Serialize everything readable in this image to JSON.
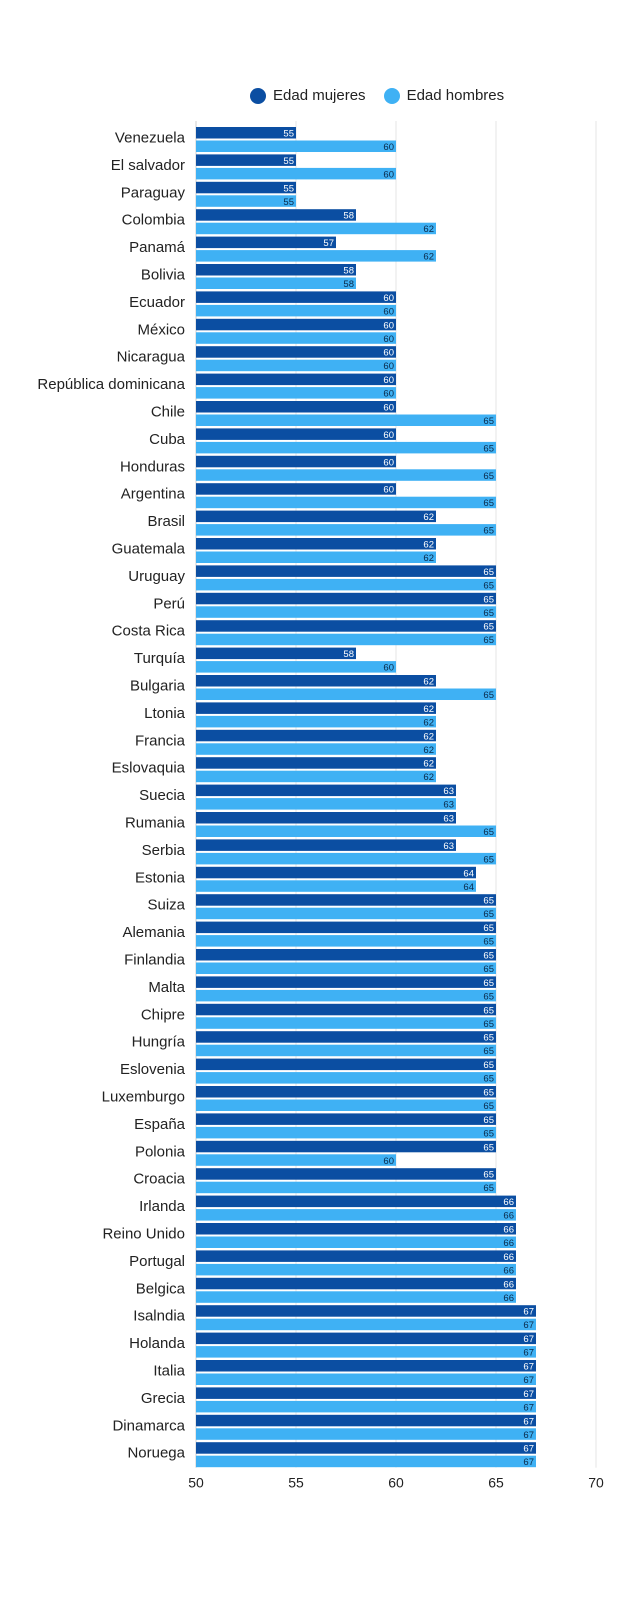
{
  "chart_data": {
    "type": "bar",
    "orientation": "horizontal",
    "categories": [
      "Venezuela",
      "El salvador",
      "Paraguay",
      "Colombia",
      "Panamá",
      "Bolivia",
      "Ecuador",
      "México",
      "Nicaragua",
      "República dominicana",
      "Chile",
      "Cuba",
      "Honduras",
      "Argentina",
      "Brasil",
      "Guatemala",
      "Uruguay",
      "Perú",
      "Costa Rica",
      "Turquía",
      "Bulgaria",
      "Ltonia",
      "Francia",
      "Eslovaquia",
      "Suecia",
      "Rumania",
      "Serbia",
      "Estonia",
      "Suiza",
      "Alemania",
      "Finlandia",
      "Malta",
      "Chipre",
      "Hungría",
      "Eslovenia",
      "Luxemburgo",
      "España",
      "Polonia",
      "Croacia",
      "Irlanda",
      "Reino Unido",
      "Portugal",
      "Belgica",
      "Isalndia",
      "Holanda",
      "Italia",
      "Grecia",
      "Dinamarca",
      "Noruega"
    ],
    "series": [
      {
        "name": "Edad mujeres",
        "color": "#0b4ea2",
        "values": [
          55,
          55,
          55,
          58,
          57,
          58,
          60,
          60,
          60,
          60,
          60,
          60,
          60,
          60,
          62,
          62,
          65,
          65,
          65,
          58,
          62,
          62,
          62,
          62,
          63,
          63,
          63,
          64,
          65,
          65,
          65,
          65,
          65,
          65,
          65,
          65,
          65,
          65,
          65,
          66,
          66,
          66,
          66,
          67,
          67,
          67,
          67,
          67,
          67
        ]
      },
      {
        "name": "Edad hombres",
        "color": "#3fb1f4",
        "values": [
          60,
          60,
          55,
          62,
          62,
          58,
          60,
          60,
          60,
          60,
          65,
          65,
          65,
          65,
          65,
          62,
          65,
          65,
          65,
          60,
          65,
          62,
          62,
          62,
          63,
          65,
          65,
          64,
          65,
          65,
          65,
          65,
          65,
          65,
          65,
          65,
          65,
          60,
          65,
          66,
          66,
          66,
          66,
          67,
          67,
          67,
          67,
          67,
          67
        ]
      }
    ],
    "xlim": [
      50,
      70
    ],
    "xticks": [
      50,
      55,
      60,
      65,
      70
    ],
    "grid": true,
    "legend_position": "top"
  }
}
